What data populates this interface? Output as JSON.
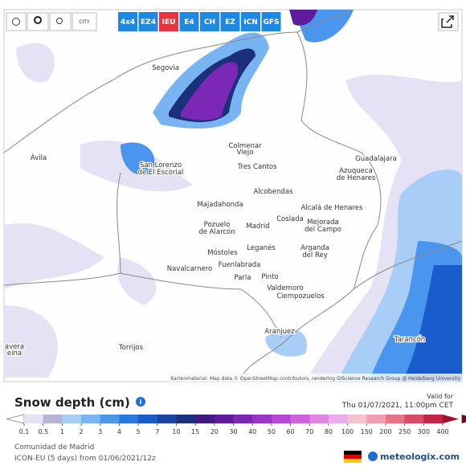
{
  "toolbar": {
    "tools": [
      "CITY"
    ],
    "models": [
      "4x4",
      "EZ4",
      "IEU",
      "E4",
      "CH",
      "EZ",
      "ICN",
      "GFS"
    ],
    "active_model": "IEU"
  },
  "map": {
    "places": [
      "Segovia",
      "Ávila",
      "San Lorenzo",
      "de El Escorial",
      "Colmenar",
      "Viejo",
      "Tres Cantos",
      "Alcobendas",
      "Guadalajara",
      "Azuqueca",
      "de Henares",
      "Majadahonda",
      "Pozuelo",
      "de Alarcón",
      "Madrid",
      "Coslada",
      "Alcalá de Henares",
      "Mejorada",
      "del Campo",
      "Leganés",
      "Móstoles",
      "Arganda",
      "del Rey",
      "Fuenlabrada",
      "Navalcarnero",
      "Parla",
      "Pinto",
      "Valdemoro",
      "Ciempozuelos",
      "Aranjuez",
      "Tarancón",
      "Torrijos",
      "avera",
      "eina"
    ],
    "attribution": "Kartenmaterial: Map data © OpenStreetMap contributors, rendering GIScience Research Group @ Heidelberg University"
  },
  "legend": {
    "title": "Snow depth (cm)",
    "valid_label": "Valid for",
    "valid_time": "Thu 01/07/2021, 11:00pm CET",
    "ticks": [
      0.1,
      0.5,
      1,
      2,
      3,
      4,
      5,
      7,
      10,
      15,
      20,
      30,
      40,
      50,
      60,
      70,
      80,
      100,
      150,
      200,
      250,
      300,
      400
    ],
    "colors": [
      "#e4e2f4",
      "#b6b3d6",
      "#a8cdf6",
      "#78b4f2",
      "#4a95ee",
      "#2a78e4",
      "#1b5ccc",
      "#1a43a6",
      "#1b2f7a",
      "#43197f",
      "#5e1c9c",
      "#7c28b6",
      "#9a34c8",
      "#b846d4",
      "#cf62d8",
      "#df86de",
      "#ecacea",
      "#f4c3cf",
      "#f29db0",
      "#ea7288",
      "#dc4866",
      "#c22447",
      "#a20f2f",
      "#72061c"
    ]
  },
  "footer": {
    "region": "Comunidad de Madrid",
    "run": "ICON-EU (5 days) from 01/06/2021/12z",
    "brand": "meteologix.com"
  }
}
